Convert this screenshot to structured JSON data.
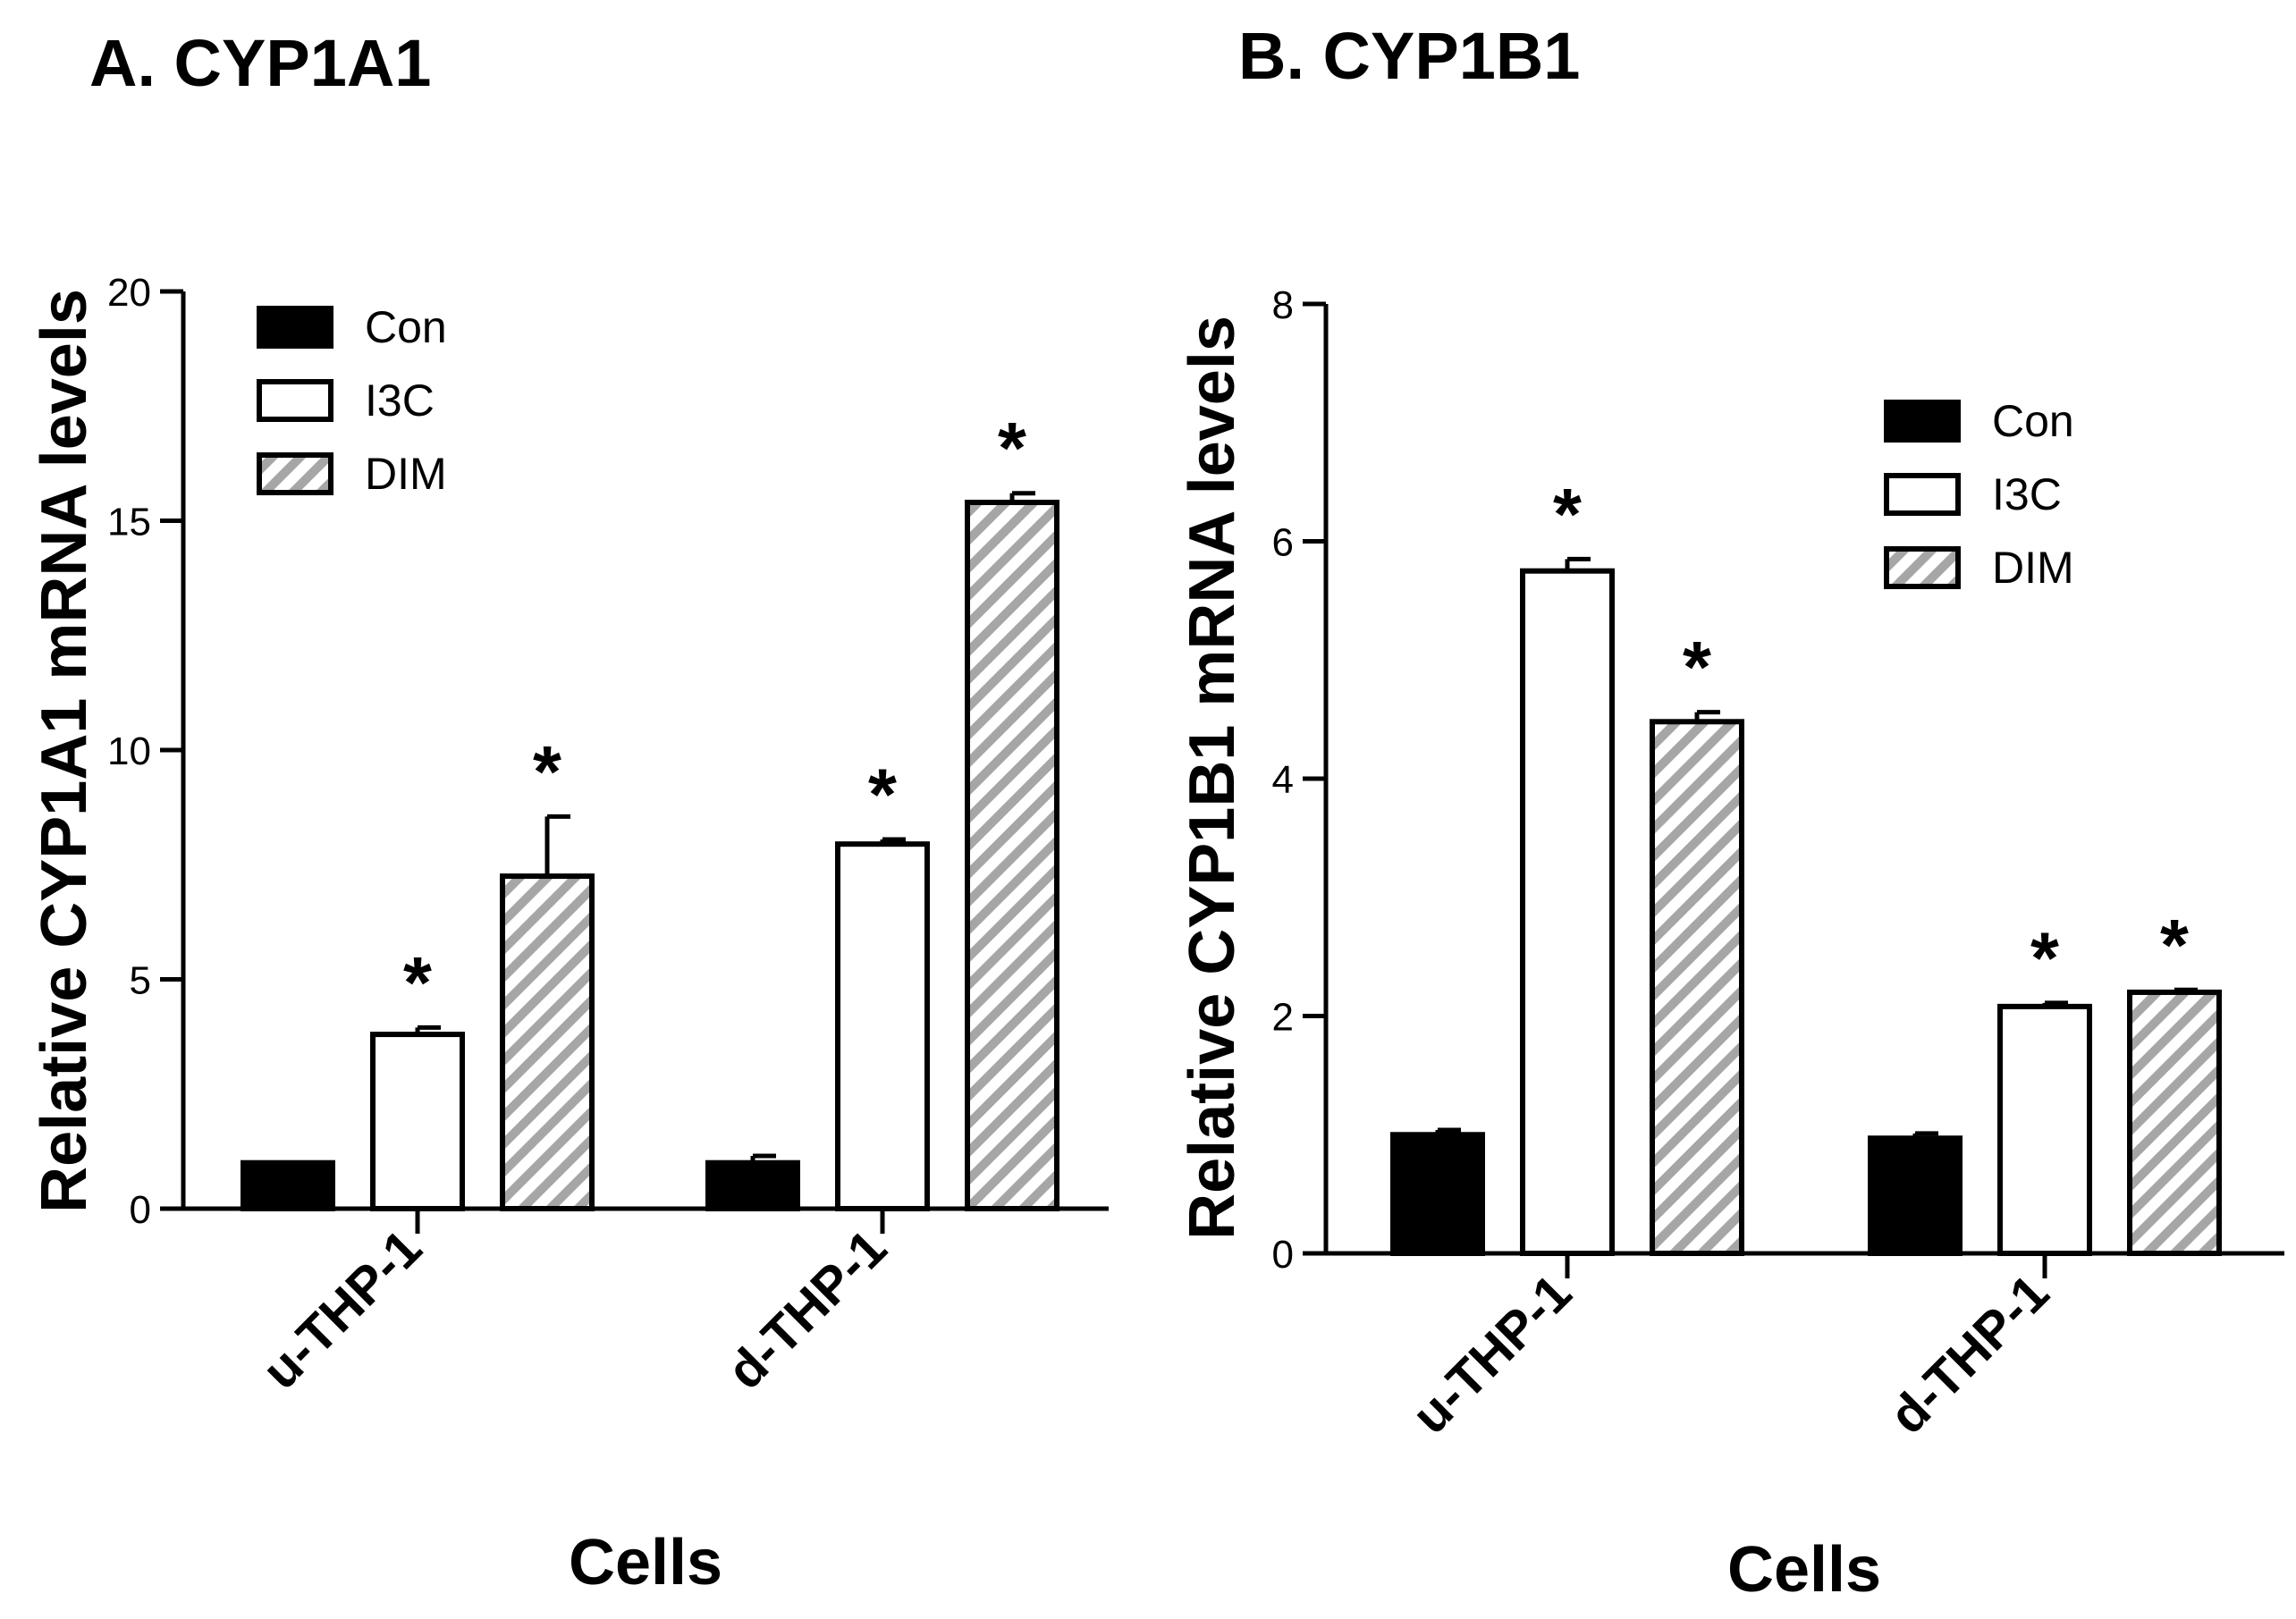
{
  "chart_data": [
    {
      "type": "bar",
      "title": "A. CYP1A1",
      "xlabel": "Cells",
      "ylabel": "Relative CYP1A1 mRNA levels",
      "ylim": [
        0,
        20
      ],
      "yticks": [
        0,
        5,
        10,
        15,
        20
      ],
      "categories": [
        "u-THP-1",
        "d-THP-1"
      ],
      "legend_position": "top-left",
      "series": [
        {
          "name": "Con",
          "fill": "solid",
          "color": "#000000",
          "values": [
            1.0,
            1.0
          ],
          "errors": [
            0.0,
            0.15
          ],
          "significant": [
            false,
            false
          ]
        },
        {
          "name": "I3C",
          "fill": "open",
          "color": "#ffffff",
          "values": [
            3.8,
            7.95
          ],
          "errors": [
            0.15,
            0.1
          ],
          "significant": [
            true,
            true
          ]
        },
        {
          "name": "DIM",
          "fill": "hatched",
          "color": "#a6a6a6",
          "values": [
            7.25,
            15.4
          ],
          "errors": [
            1.3,
            0.2
          ],
          "significant": [
            true,
            true
          ]
        }
      ],
      "significance_marker": "*"
    },
    {
      "type": "bar",
      "title": "B. CYP1B1",
      "xlabel": "Cells",
      "ylabel": "Relative CYP1B1 mRNA levels",
      "ylim": [
        0,
        8
      ],
      "yticks": [
        0,
        2,
        4,
        6,
        8
      ],
      "categories": [
        "u-THP-1",
        "d-THP-1"
      ],
      "legend_position": "top-right",
      "series": [
        {
          "name": "Con",
          "fill": "solid",
          "color": "#000000",
          "values": [
            1.0,
            0.97
          ],
          "errors": [
            0.04,
            0.04
          ],
          "significant": [
            false,
            false
          ]
        },
        {
          "name": "I3C",
          "fill": "open",
          "color": "#ffffff",
          "values": [
            5.75,
            2.08
          ],
          "errors": [
            0.1,
            0.03
          ],
          "significant": [
            true,
            true
          ]
        },
        {
          "name": "DIM",
          "fill": "hatched",
          "color": "#a6a6a6",
          "values": [
            4.48,
            2.2
          ],
          "errors": [
            0.08,
            0.02
          ],
          "significant": [
            true,
            true
          ]
        }
      ],
      "significance_marker": "*"
    }
  ]
}
